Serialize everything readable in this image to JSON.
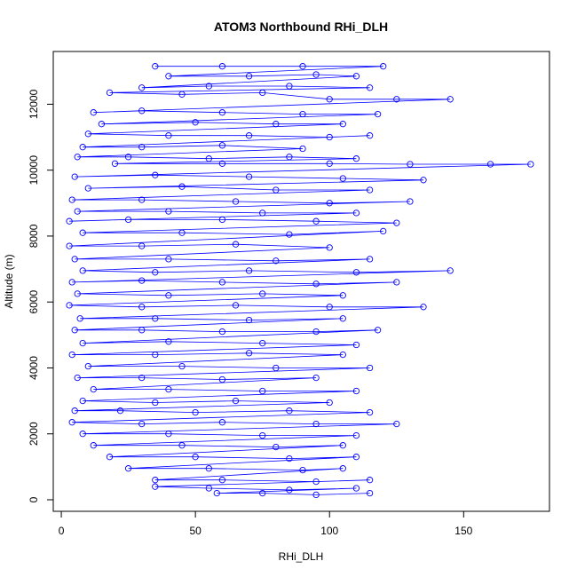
{
  "chart_data": {
    "type": "scatter",
    "title": "ATOM3 Northbound RHi_DLH",
    "xlabel": "RHi_DLH",
    "ylabel": "Altitude (m)",
    "xlim": [
      -3,
      182
    ],
    "ylim": [
      -350,
      13600
    ],
    "x_ticks": [
      0,
      50,
      100,
      150
    ],
    "y_ticks": [
      0,
      2000,
      4000,
      6000,
      8000,
      10000,
      12000
    ],
    "grid": false,
    "point_style": "open-circle",
    "connected": true,
    "color": "#0000ff",
    "series": [
      {
        "points": [
          [
            35,
            13150
          ],
          [
            60,
            13150
          ],
          [
            90,
            13150
          ],
          [
            120,
            13150
          ],
          [
            40,
            12850
          ],
          [
            70,
            12850
          ],
          [
            95,
            12900
          ],
          [
            110,
            12850
          ],
          [
            30,
            12500
          ],
          [
            55,
            12550
          ],
          [
            85,
            12550
          ],
          [
            115,
            12500
          ],
          [
            18,
            12350
          ],
          [
            45,
            12300
          ],
          [
            75,
            12350
          ],
          [
            100,
            12150
          ],
          [
            125,
            12150
          ],
          [
            145,
            12150
          ],
          [
            12,
            11750
          ],
          [
            30,
            11800
          ],
          [
            60,
            11750
          ],
          [
            90,
            11700
          ],
          [
            118,
            11700
          ],
          [
            15,
            11400
          ],
          [
            50,
            11450
          ],
          [
            80,
            11400
          ],
          [
            105,
            11400
          ],
          [
            10,
            11100
          ],
          [
            40,
            11050
          ],
          [
            70,
            11050
          ],
          [
            100,
            11000
          ],
          [
            115,
            11050
          ],
          [
            8,
            10700
          ],
          [
            30,
            10700
          ],
          [
            60,
            10750
          ],
          [
            90,
            10650
          ],
          [
            6,
            10400
          ],
          [
            25,
            10400
          ],
          [
            55,
            10350
          ],
          [
            85,
            10400
          ],
          [
            110,
            10350
          ],
          [
            20,
            10200
          ],
          [
            60,
            10200
          ],
          [
            100,
            10200
          ],
          [
            130,
            10180
          ],
          [
            160,
            10180
          ],
          [
            175,
            10180
          ],
          [
            5,
            9800
          ],
          [
            35,
            9850
          ],
          [
            70,
            9800
          ],
          [
            105,
            9750
          ],
          [
            135,
            9700
          ],
          [
            10,
            9450
          ],
          [
            45,
            9500
          ],
          [
            80,
            9400
          ],
          [
            115,
            9400
          ],
          [
            4,
            9100
          ],
          [
            30,
            9100
          ],
          [
            65,
            9050
          ],
          [
            100,
            9000
          ],
          [
            130,
            9050
          ],
          [
            6,
            8750
          ],
          [
            40,
            8750
          ],
          [
            75,
            8700
          ],
          [
            110,
            8700
          ],
          [
            3,
            8450
          ],
          [
            25,
            8500
          ],
          [
            60,
            8500
          ],
          [
            95,
            8450
          ],
          [
            125,
            8400
          ],
          [
            8,
            8100
          ],
          [
            45,
            8100
          ],
          [
            85,
            8050
          ],
          [
            120,
            8150
          ],
          [
            3,
            7700
          ],
          [
            30,
            7700
          ],
          [
            65,
            7750
          ],
          [
            100,
            7650
          ],
          [
            5,
            7300
          ],
          [
            40,
            7300
          ],
          [
            80,
            7250
          ],
          [
            115,
            7300
          ],
          [
            8,
            6950
          ],
          [
            35,
            6900
          ],
          [
            70,
            6950
          ],
          [
            110,
            6900
          ],
          [
            145,
            6950
          ],
          [
            4,
            6600
          ],
          [
            30,
            6650
          ],
          [
            60,
            6600
          ],
          [
            95,
            6550
          ],
          [
            125,
            6600
          ],
          [
            6,
            6250
          ],
          [
            40,
            6200
          ],
          [
            75,
            6250
          ],
          [
            105,
            6200
          ],
          [
            3,
            5900
          ],
          [
            30,
            5850
          ],
          [
            65,
            5900
          ],
          [
            100,
            5850
          ],
          [
            135,
            5850
          ],
          [
            7,
            5500
          ],
          [
            35,
            5500
          ],
          [
            70,
            5450
          ],
          [
            105,
            5500
          ],
          [
            5,
            5150
          ],
          [
            30,
            5150
          ],
          [
            60,
            5100
          ],
          [
            95,
            5100
          ],
          [
            118,
            5150
          ],
          [
            8,
            4750
          ],
          [
            40,
            4800
          ],
          [
            75,
            4750
          ],
          [
            110,
            4700
          ],
          [
            4,
            4400
          ],
          [
            35,
            4400
          ],
          [
            70,
            4450
          ],
          [
            105,
            4400
          ],
          [
            10,
            4050
          ],
          [
            45,
            4050
          ],
          [
            80,
            4000
          ],
          [
            115,
            4000
          ],
          [
            6,
            3700
          ],
          [
            30,
            3700
          ],
          [
            60,
            3650
          ],
          [
            95,
            3700
          ],
          [
            12,
            3350
          ],
          [
            40,
            3350
          ],
          [
            75,
            3300
          ],
          [
            110,
            3300
          ],
          [
            8,
            3000
          ],
          [
            35,
            2950
          ],
          [
            65,
            3000
          ],
          [
            100,
            2950
          ],
          [
            5,
            2700
          ],
          [
            22,
            2700
          ],
          [
            50,
            2650
          ],
          [
            85,
            2700
          ],
          [
            115,
            2650
          ],
          [
            4,
            2350
          ],
          [
            30,
            2300
          ],
          [
            60,
            2350
          ],
          [
            95,
            2300
          ],
          [
            125,
            2300
          ],
          [
            8,
            2000
          ],
          [
            40,
            2000
          ],
          [
            75,
            1950
          ],
          [
            110,
            1950
          ],
          [
            12,
            1650
          ],
          [
            45,
            1650
          ],
          [
            80,
            1600
          ],
          [
            105,
            1650
          ],
          [
            18,
            1300
          ],
          [
            50,
            1300
          ],
          [
            85,
            1250
          ],
          [
            110,
            1300
          ],
          [
            25,
            950
          ],
          [
            55,
            950
          ],
          [
            90,
            900
          ],
          [
            105,
            950
          ],
          [
            35,
            600
          ],
          [
            60,
            600
          ],
          [
            95,
            550
          ],
          [
            115,
            600
          ],
          [
            35,
            400
          ],
          [
            55,
            350
          ],
          [
            85,
            300
          ],
          [
            110,
            350
          ],
          [
            58,
            200
          ],
          [
            75,
            200
          ],
          [
            95,
            150
          ],
          [
            115,
            200
          ]
        ]
      }
    ]
  }
}
